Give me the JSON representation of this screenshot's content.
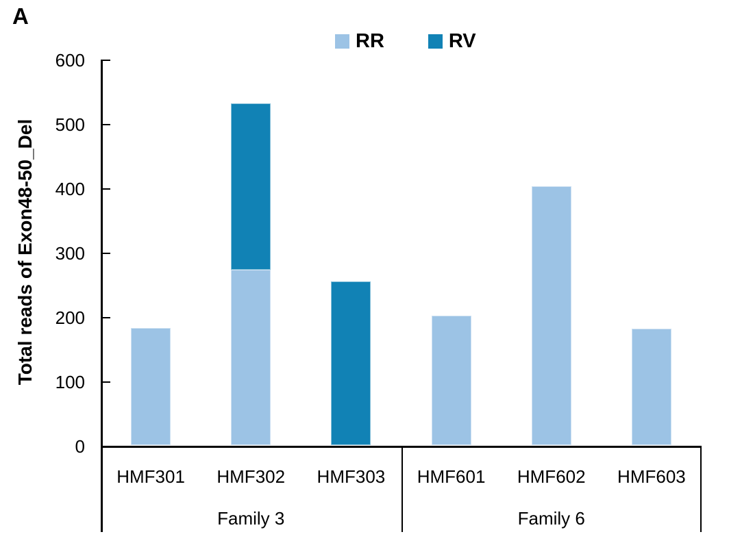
{
  "panel_label": "A",
  "chart_data": {
    "type": "bar",
    "stacked": true,
    "title": "",
    "xlabel": "",
    "ylabel": "Total reads of Exon48-50_Del",
    "ylim": [
      0,
      600
    ],
    "yticks": [
      0,
      100,
      200,
      300,
      400,
      500,
      600
    ],
    "grid": false,
    "legend_position": "top-center",
    "categories": [
      "HMF301",
      "HMF302",
      "HMF303",
      "HMF601",
      "HMF602",
      "HMF603"
    ],
    "groups": [
      {
        "label": "Family 3",
        "span": 3
      },
      {
        "label": "Family 6",
        "span": 3
      }
    ],
    "series": [
      {
        "name": "RR",
        "color": "#9CC3E5",
        "values": [
          182,
          272,
          0,
          201,
          402,
          181
        ]
      },
      {
        "name": "RV",
        "color": "#1182B5",
        "values": [
          0,
          259,
          254,
          0,
          0,
          0
        ]
      }
    ]
  }
}
